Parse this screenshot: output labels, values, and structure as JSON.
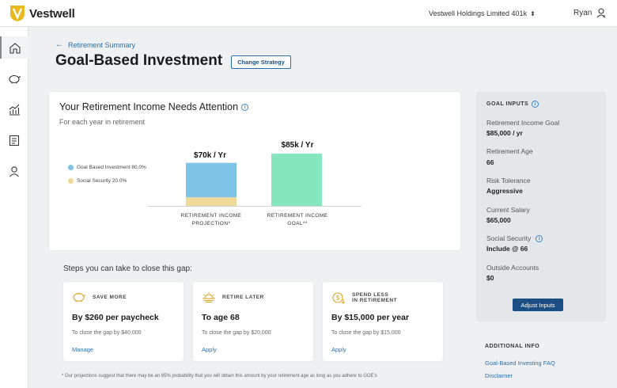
{
  "brand": {
    "name": "Vestwell",
    "color": "#e8b91f"
  },
  "header": {
    "plan": "Vestwell Holdings Limited 401k",
    "user": "Ryan"
  },
  "sidebar": [
    "home-icon",
    "piggy-bank-icon",
    "growth-chart-icon",
    "document-icon",
    "profile-icon"
  ],
  "breadcrumb": "Retirement Summary",
  "page_title": "Goal-Based Investment",
  "change_strategy": "Change Strategy",
  "summary": {
    "title": "Your Retirement Income Needs Attention",
    "subtitle": "For each year in retirement",
    "legend": [
      {
        "label": "Goal Based Investment 80.0%",
        "color": "#7fc4e6"
      },
      {
        "label": "Social Security 20.0%",
        "color": "#efd998"
      }
    ],
    "projection_value": "$70k / Yr",
    "goal_value": "$85k / Yr",
    "projection_label_1": "RETIREMENT INCOME",
    "projection_label_2": "PROJECTION*",
    "goal_label_1": "RETIREMENT INCOME",
    "goal_label_2": "GOAL**"
  },
  "chart_data": {
    "type": "bar",
    "categories": [
      "RETIREMENT INCOME PROJECTION*",
      "RETIREMENT INCOME GOAL**"
    ],
    "series": [
      {
        "name": "Goal Based Investment 80.0%",
        "values": [
          56,
          0
        ]
      },
      {
        "name": "Social Security 20.0%",
        "values": [
          14,
          0
        ]
      },
      {
        "name": "",
        "values": [
          0,
          85
        ]
      }
    ],
    "ylim": [
      0,
      85
    ],
    "colors": {
      "goal_based": "#7fc4e6",
      "social_security": "#efd998",
      "goal": "#86e6be"
    }
  },
  "steps": {
    "title": "Steps you can take to close this gap:",
    "cards": [
      {
        "kicker_1": "SAVE MORE",
        "kicker_2": "",
        "main": "By $260 per paycheck",
        "note": "To close the gap by $40,000",
        "link": "Manage"
      },
      {
        "kicker_1": "RETIRE LATER",
        "kicker_2": "",
        "main": "To age 68",
        "note": "To close the gap by $20,000",
        "link": "Apply"
      },
      {
        "kicker_1": "SPEND LESS",
        "kicker_2": "IN RETIREMENT",
        "main": "By $15,000 per year",
        "note": "To close the gap by $15,000",
        "link": "Apply"
      }
    ]
  },
  "footnote": "* Our projections suggest that there may be an 85% probability that you will obtain this amount by your retirement age as long as you adhere to GOE's",
  "goal_inputs": {
    "title": "GOAL INPUTS",
    "items": [
      {
        "label": "Retirement Income Goal",
        "value": "$85,000 / yr"
      },
      {
        "label": "Retirement Age",
        "value": "66"
      },
      {
        "label": "Risk Tolerance",
        "value": "Aggressive"
      },
      {
        "label": "Current Salary",
        "value": "$65,000"
      },
      {
        "label": "Social Security",
        "value": "Include @ 66"
      },
      {
        "label": "Outside Accounts",
        "value": "$0"
      }
    ],
    "button": "Adjust Inputs"
  },
  "additional": {
    "title": "ADDITIONAL INFO",
    "links": [
      "Goal-Based Investing FAQ",
      "Disclaimer"
    ]
  }
}
